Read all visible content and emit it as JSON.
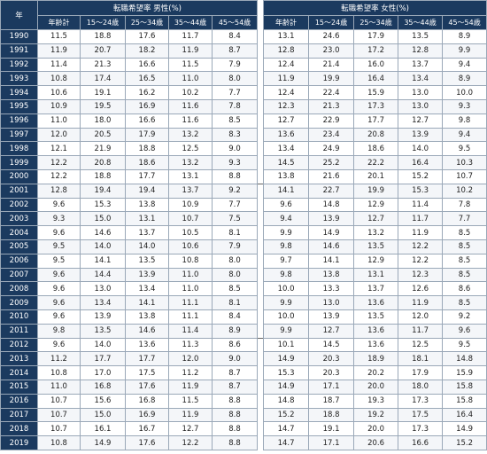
{
  "header": {
    "year_label": "年",
    "male_group": "転職希望率 男性(%)",
    "female_group": "転職希望率 女性(%)",
    "columns": [
      "年齢計",
      "15～24歳",
      "25～34歳",
      "35～44歳",
      "45～54歳"
    ]
  },
  "rows": [
    {
      "year": "1990",
      "male": [
        "11.5",
        "18.8",
        "17.6",
        "11.7",
        "8.4"
      ],
      "female": [
        "13.1",
        "24.6",
        "17.9",
        "13.5",
        "8.9"
      ]
    },
    {
      "year": "1991",
      "male": [
        "11.9",
        "20.7",
        "18.2",
        "11.9",
        "8.7"
      ],
      "female": [
        "12.8",
        "23.0",
        "17.2",
        "12.8",
        "9.9"
      ]
    },
    {
      "year": "1992",
      "male": [
        "11.4",
        "21.3",
        "16.6",
        "11.5",
        "7.9"
      ],
      "female": [
        "12.4",
        "21.4",
        "16.0",
        "13.7",
        "9.4"
      ]
    },
    {
      "year": "1993",
      "male": [
        "10.8",
        "17.4",
        "16.5",
        "11.0",
        "8.0"
      ],
      "female": [
        "11.9",
        "19.9",
        "16.4",
        "13.4",
        "8.9"
      ]
    },
    {
      "year": "1994",
      "male": [
        "10.6",
        "19.1",
        "16.2",
        "10.2",
        "7.7"
      ],
      "female": [
        "12.4",
        "22.4",
        "15.9",
        "13.0",
        "10.0"
      ]
    },
    {
      "year": "1995",
      "male": [
        "10.9",
        "19.5",
        "16.9",
        "11.6",
        "7.8"
      ],
      "female": [
        "12.3",
        "21.3",
        "17.3",
        "13.0",
        "9.3"
      ]
    },
    {
      "year": "1996",
      "male": [
        "11.0",
        "18.0",
        "16.6",
        "11.6",
        "8.5"
      ],
      "female": [
        "12.7",
        "22.9",
        "17.7",
        "12.7",
        "9.8"
      ]
    },
    {
      "year": "1997",
      "male": [
        "12.0",
        "20.5",
        "17.9",
        "13.2",
        "8.3"
      ],
      "female": [
        "13.6",
        "23.4",
        "20.8",
        "13.9",
        "9.4"
      ]
    },
    {
      "year": "1998",
      "male": [
        "12.1",
        "21.9",
        "18.8",
        "12.5",
        "9.0"
      ],
      "female": [
        "13.4",
        "24.9",
        "18.6",
        "14.0",
        "9.5"
      ]
    },
    {
      "year": "1999",
      "male": [
        "12.2",
        "20.8",
        "18.6",
        "13.2",
        "9.3"
      ],
      "female": [
        "14.5",
        "25.2",
        "22.2",
        "16.4",
        "10.3"
      ]
    },
    {
      "year": "2000",
      "male": [
        "12.2",
        "18.8",
        "17.7",
        "13.1",
        "8.8"
      ],
      "female": [
        "13.8",
        "21.6",
        "20.1",
        "15.2",
        "10.7"
      ]
    },
    {
      "year": "2001",
      "male": [
        "12.8",
        "19.4",
        "19.4",
        "13.7",
        "9.2"
      ],
      "female": [
        "14.1",
        "22.7",
        "19.9",
        "15.3",
        "10.2"
      ]
    },
    {
      "year": "2002",
      "male": [
        "9.6",
        "15.3",
        "13.8",
        "10.9",
        "7.7"
      ],
      "female": [
        "9.6",
        "14.8",
        "12.9",
        "11.4",
        "7.8"
      ]
    },
    {
      "year": "2003",
      "male": [
        "9.3",
        "15.0",
        "13.1",
        "10.7",
        "7.5"
      ],
      "female": [
        "9.4",
        "13.9",
        "12.7",
        "11.7",
        "7.7"
      ]
    },
    {
      "year": "2004",
      "male": [
        "9.6",
        "14.6",
        "13.7",
        "10.5",
        "8.1"
      ],
      "female": [
        "9.9",
        "14.9",
        "13.2",
        "11.9",
        "8.5"
      ]
    },
    {
      "year": "2005",
      "male": [
        "9.5",
        "14.0",
        "14.0",
        "10.6",
        "7.9"
      ],
      "female": [
        "9.8",
        "14.6",
        "13.5",
        "12.2",
        "8.5"
      ]
    },
    {
      "year": "2006",
      "male": [
        "9.5",
        "14.1",
        "13.5",
        "10.8",
        "8.0"
      ],
      "female": [
        "9.7",
        "14.1",
        "12.9",
        "12.2",
        "8.5"
      ]
    },
    {
      "year": "2007",
      "male": [
        "9.6",
        "14.4",
        "13.9",
        "11.0",
        "8.0"
      ],
      "female": [
        "9.8",
        "13.8",
        "13.1",
        "12.3",
        "8.5"
      ]
    },
    {
      "year": "2008",
      "male": [
        "9.6",
        "13.0",
        "13.4",
        "11.0",
        "8.5"
      ],
      "female": [
        "10.0",
        "13.3",
        "13.7",
        "12.6",
        "8.6"
      ]
    },
    {
      "year": "2009",
      "male": [
        "9.6",
        "13.4",
        "14.1",
        "11.1",
        "8.1"
      ],
      "female": [
        "9.9",
        "13.0",
        "13.6",
        "11.9",
        "8.5"
      ]
    },
    {
      "year": "2010",
      "male": [
        "9.6",
        "13.9",
        "13.8",
        "11.1",
        "8.4"
      ],
      "female": [
        "10.0",
        "13.9",
        "13.5",
        "12.0",
        "9.2"
      ]
    },
    {
      "year": "2011",
      "male": [
        "9.8",
        "13.5",
        "14.6",
        "11.4",
        "8.9"
      ],
      "female": [
        "9.9",
        "12.7",
        "13.6",
        "11.7",
        "9.6"
      ]
    },
    {
      "year": "2012",
      "male": [
        "9.6",
        "14.0",
        "13.6",
        "11.3",
        "8.6"
      ],
      "female": [
        "10.1",
        "14.5",
        "13.6",
        "12.5",
        "9.5"
      ]
    },
    {
      "year": "2013",
      "male": [
        "11.2",
        "17.7",
        "17.7",
        "12.0",
        "9.0"
      ],
      "female": [
        "14.9",
        "20.3",
        "18.9",
        "18.1",
        "14.8"
      ]
    },
    {
      "year": "2014",
      "male": [
        "10.8",
        "17.0",
        "17.5",
        "11.2",
        "8.7"
      ],
      "female": [
        "15.3",
        "20.3",
        "20.2",
        "17.9",
        "15.9"
      ]
    },
    {
      "year": "2015",
      "male": [
        "11.0",
        "16.8",
        "17.6",
        "11.9",
        "8.7"
      ],
      "female": [
        "14.9",
        "17.1",
        "20.0",
        "18.0",
        "15.8"
      ]
    },
    {
      "year": "2016",
      "male": [
        "10.7",
        "15.6",
        "16.8",
        "11.5",
        "8.8"
      ],
      "female": [
        "14.8",
        "18.7",
        "19.3",
        "17.3",
        "15.8"
      ]
    },
    {
      "year": "2017",
      "male": [
        "10.7",
        "15.0",
        "16.9",
        "11.9",
        "8.8"
      ],
      "female": [
        "15.2",
        "18.8",
        "19.2",
        "17.5",
        "16.4"
      ]
    },
    {
      "year": "2018",
      "male": [
        "10.7",
        "16.1",
        "16.7",
        "12.7",
        "8.8"
      ],
      "female": [
        "14.7",
        "19.1",
        "20.0",
        "17.3",
        "14.9"
      ]
    },
    {
      "year": "2019",
      "male": [
        "10.8",
        "14.9",
        "17.6",
        "12.2",
        "8.8"
      ],
      "female": [
        "14.7",
        "17.1",
        "20.6",
        "16.6",
        "15.2"
      ]
    }
  ]
}
